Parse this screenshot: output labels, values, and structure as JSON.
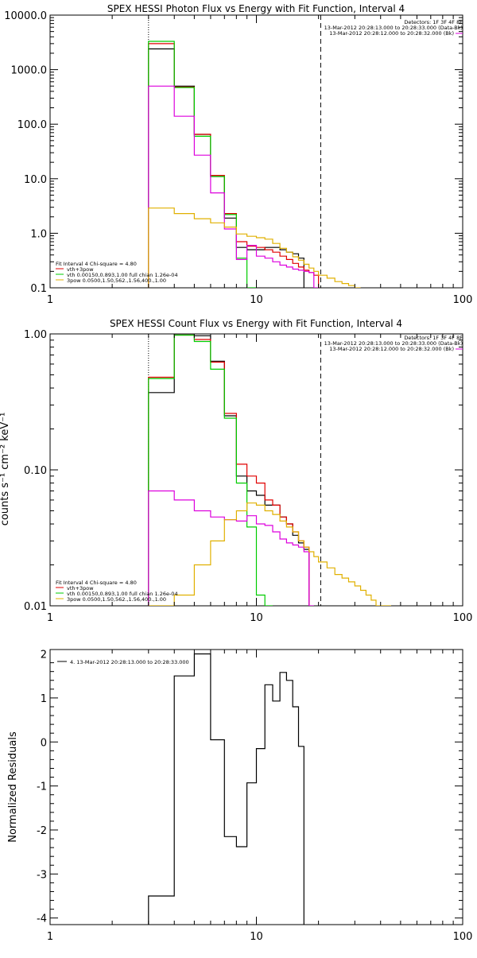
{
  "panels": [
    {
      "id": "photon",
      "title": "SPEX HESSI Photon Flux vs Energy with Fit Function, Interval 4",
      "ylabel": "",
      "xlim": [
        1,
        100
      ],
      "xlog": true,
      "ylim": [
        0.1,
        10000
      ],
      "ylog": true,
      "xticks": [
        {
          "v": 1,
          "label": "1"
        },
        {
          "v": 10,
          "label": "10"
        },
        {
          "v": 100,
          "label": "100"
        }
      ],
      "yticks": [
        {
          "v": 0.1,
          "label": "0.1"
        },
        {
          "v": 1,
          "label": "1.0"
        },
        {
          "v": 10,
          "label": "10.0"
        },
        {
          "v": 100,
          "label": "100.0"
        },
        {
          "v": 1000,
          "label": "1000.0"
        },
        {
          "v": 10000,
          "label": "10000.0"
        }
      ],
      "vlines": [
        {
          "x": 3,
          "style": "dotted"
        },
        {
          "x": 20.5,
          "style": "dashed"
        }
      ],
      "info_right": [
        "Detectors: 1F 3F 4F 8F",
        "13-Mar-2012 20:28:13.000 to 20:28:33.000 (Data-Bk)",
        "13-Mar-2012 20:28:12.000 to 20:28:32.000 (Bk)"
      ],
      "info_left": [
        {
          "text": "Fit Interval 4   Chi-square = 4.80",
          "color": "#000000"
        },
        {
          "text": "vth+3pow",
          "color": "#e00000"
        },
        {
          "text": "vth 0.00150,0.893,1.00  full chian 1.26e-04",
          "color": "#00cc00"
        },
        {
          "text": "3pow 0.0500,1.50,562.,1.56,400.,1.00",
          "color": "#e0b000"
        }
      ]
    },
    {
      "id": "count",
      "title": "SPEX HESSI Count Flux vs Energy with Fit Function, Interval 4",
      "ylabel": "counts s⁻¹ cm⁻² keV⁻¹",
      "xlim": [
        1,
        100
      ],
      "xlog": true,
      "ylim": [
        0.01,
        1
      ],
      "ylog": true,
      "xticks": [
        {
          "v": 1,
          "label": "1"
        },
        {
          "v": 10,
          "label": "10"
        },
        {
          "v": 100,
          "label": "100"
        }
      ],
      "yticks": [
        {
          "v": 0.01,
          "label": "0.01"
        },
        {
          "v": 0.1,
          "label": "0.10"
        },
        {
          "v": 1,
          "label": "1.00"
        }
      ],
      "vlines": [
        {
          "x": 3,
          "style": "dotted"
        },
        {
          "x": 20.5,
          "style": "dashed"
        }
      ],
      "info_right": [
        "Detectors: 1F 3F 4F 8F",
        "13-Mar-2012 20:28:13.000 to 20:28:33.000 (Data-Bk)",
        "13-Mar-2012 20:28:12.000 to 20:28:32.000 (Bk)"
      ],
      "info_left": [
        {
          "text": "Fit Interval 4   Chi-square = 4.80",
          "color": "#000000"
        },
        {
          "text": "vth+3pow",
          "color": "#e00000"
        },
        {
          "text": "vth 0.00150,0.893,1.00  full chian 1.26e-04",
          "color": "#00cc00"
        },
        {
          "text": "3pow 0.0500,1.50,562.,1.56,400.,1.00",
          "color": "#e0b000"
        }
      ]
    },
    {
      "id": "resid",
      "title": "",
      "ylabel": "Normalized Residuals",
      "xlim": [
        1,
        100
      ],
      "xlog": true,
      "ylim": [
        -4.15,
        2.1
      ],
      "ylog": false,
      "xticks": [
        {
          "v": 1,
          "label": "1"
        },
        {
          "v": 10,
          "label": "10"
        },
        {
          "v": 100,
          "label": "100"
        }
      ],
      "yticks": [
        {
          "v": -4,
          "label": "-4"
        },
        {
          "v": -3,
          "label": "-3"
        },
        {
          "v": -2,
          "label": "-2"
        },
        {
          "v": -1,
          "label": "-1"
        },
        {
          "v": 0,
          "label": "0"
        },
        {
          "v": 1,
          "label": "1"
        },
        {
          "v": 2,
          "label": "2"
        }
      ],
      "vlines": [],
      "info_right": [],
      "info_left": [],
      "legend_line": "4. 13-Mar-2012 20:28:13.000 to 20:28:33.000"
    }
  ],
  "chart_data": [
    {
      "type": "line",
      "title": "SPEX HESSI Photon Flux vs Energy with Fit Function, Interval 4",
      "xlim": [
        1,
        100
      ],
      "ylim": [
        0.1,
        10000
      ],
      "x_scale": "log",
      "y_scale": "log",
      "edges": [
        3,
        4,
        5,
        6,
        7,
        8,
        9,
        10,
        11,
        12,
        13,
        14,
        15,
        16,
        17,
        18,
        19,
        20,
        22,
        24,
        26,
        28,
        30,
        32
      ],
      "series": [
        {
          "color": "#000000",
          "values": [
            2400,
            500,
            65,
            11,
            1.9,
            0.55,
            0.5,
            0.5,
            0.55,
            0.55,
            0.5,
            0.45,
            0.42,
            0.35
          ]
        },
        {
          "color": "#e00000",
          "values": [
            3000,
            480,
            65,
            11.5,
            2.3,
            0.7,
            0.58,
            0.55,
            0.5,
            0.45,
            0.38,
            0.33,
            0.28,
            0.24,
            0.21,
            0.19,
            0.17
          ]
        },
        {
          "color": "#00cc00",
          "values": [
            3300,
            470,
            60,
            11,
            2.2,
            0.35,
            0.1
          ]
        },
        {
          "color": "#dd00dd",
          "values": [
            500,
            140,
            27,
            5.5,
            1.2,
            0.33,
            0.6,
            0.38,
            0.35,
            0.3,
            0.26,
            0.24,
            0.22,
            0.21,
            0.2,
            0.19,
            0.1
          ]
        },
        {
          "color": "#e0b000",
          "values": [
            2.9,
            2.3,
            1.85,
            1.55,
            1.3,
            0.97,
            0.88,
            0.83,
            0.78,
            0.65,
            0.53,
            0.45,
            0.37,
            0.32,
            0.27,
            0.23,
            0.2,
            0.17,
            0.15,
            0.13,
            0.12,
            0.11,
            0.1
          ]
        }
      ]
    },
    {
      "type": "line",
      "title": "SPEX HESSI Count Flux vs Energy with Fit Function, Interval 4",
      "ylabel": "counts s⁻¹ cm⁻² keV⁻¹",
      "xlim": [
        1,
        100
      ],
      "ylim": [
        0.01,
        1
      ],
      "x_scale": "log",
      "y_scale": "log",
      "edges": [
        3,
        4,
        5,
        6,
        7,
        8,
        9,
        10,
        11,
        12,
        13,
        14,
        15,
        16,
        17,
        18,
        19,
        20,
        22,
        24,
        26,
        28,
        30,
        32,
        34,
        36,
        38,
        40,
        42,
        45
      ],
      "series": [
        {
          "color": "#000000",
          "values": [
            0.37,
            1.0,
            0.97,
            0.63,
            0.25,
            0.09,
            0.07,
            0.065,
            0.055,
            0.055,
            0.045,
            0.04,
            0.033,
            0.029,
            0.026
          ]
        },
        {
          "color": "#e00000",
          "values": [
            0.48,
            0.98,
            0.91,
            0.62,
            0.26,
            0.11,
            0.09,
            0.08,
            0.06,
            0.055,
            0.045,
            0.04,
            0.035,
            0.03,
            0.027
          ]
        },
        {
          "color": "#00cc00",
          "values": [
            0.47,
            0.98,
            0.88,
            0.55,
            0.24,
            0.08,
            0.038,
            0.012,
            0.01
          ]
        },
        {
          "color": "#dd00dd",
          "values": [
            0.07,
            0.06,
            0.05,
            0.045,
            0.043,
            0.042,
            0.046,
            0.04,
            0.039,
            0.035,
            0.031,
            0.029,
            0.028,
            0.027,
            0.025,
            0.01
          ]
        },
        {
          "color": "#e0b000",
          "values": [
            0.01,
            0.012,
            0.02,
            0.03,
            0.043,
            0.05,
            0.057,
            0.055,
            0.05,
            0.047,
            0.042,
            0.038,
            0.035,
            0.03,
            0.027,
            0.025,
            0.023,
            0.021,
            0.019,
            0.017,
            0.016,
            0.015,
            0.014,
            0.013,
            0.012,
            0.011,
            0.01,
            0.01,
            0.01
          ]
        }
      ]
    },
    {
      "type": "line",
      "title": "",
      "ylabel": "Normalized Residuals",
      "xlim": [
        1,
        100
      ],
      "ylim": [
        -4.15,
        2.1
      ],
      "x_scale": "log",
      "y_scale": "linear",
      "edges": [
        3,
        4,
        5,
        6,
        7,
        8,
        9,
        10,
        11,
        12,
        13,
        14,
        15,
        16,
        17,
        18,
        19,
        20
      ],
      "series": [
        {
          "name": "4. 13-Mar-2012 20:28:13.000 to 20:28:33.000",
          "color": "#000000",
          "values": [
            -3.5,
            1.5,
            2.0,
            0.05,
            -2.15,
            -2.38,
            -0.93,
            -0.15,
            1.3,
            0.93,
            1.58,
            1.4,
            0.8,
            -0.1
          ]
        }
      ]
    }
  ]
}
